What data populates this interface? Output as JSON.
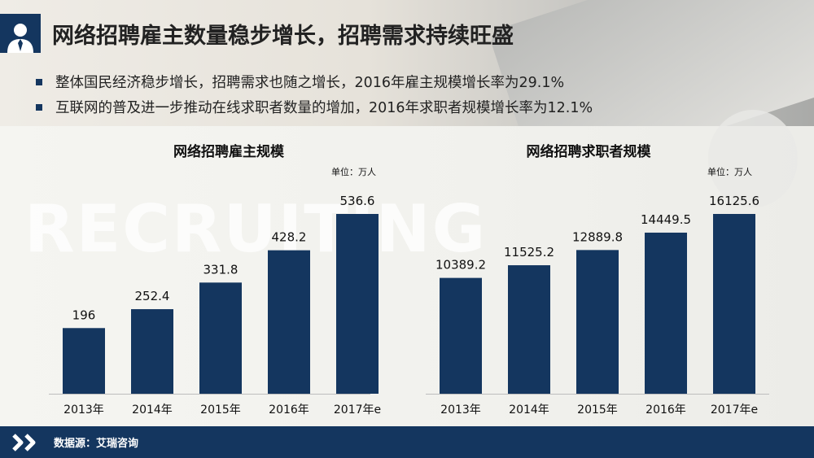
{
  "header": {
    "title": "网络招聘雇主数量稳步增长，招聘需求持续旺盛"
  },
  "bullets": [
    "整体国民经济稳步增长，招聘需求也随之增长，2016年雇主规模增长率为29.1%",
    "互联网的普及进一步推动在线求职者数量的增加，2016年求职者规模增长率为12.1%"
  ],
  "watermark": "RECRUITING",
  "footer": {
    "source": "数据源：艾瑞咨询"
  },
  "colors": {
    "bar": "#14365f",
    "title_bg": "#14365f",
    "footer_bg": "#14365f"
  },
  "icons": {
    "title_icon": "user-avatar-icon",
    "footer_icon": "double-chevron-right-icon"
  },
  "chart_data": [
    {
      "type": "bar",
      "title": "网络招聘雇主规模",
      "unit_label": "单位：万人",
      "categories": [
        "2013年",
        "2014年",
        "2015年",
        "2016年",
        "2017年e"
      ],
      "values": [
        196,
        252.4,
        331.8,
        428.2,
        536.6
      ],
      "value_labels": [
        "196",
        "252.4",
        "331.8",
        "428.2",
        "536.6"
      ],
      "ylim": [
        0,
        600
      ],
      "grid": false
    },
    {
      "type": "bar",
      "title": "网络招聘求职者规模",
      "unit_label": "单位：万人",
      "categories": [
        "2013年",
        "2014年",
        "2015年",
        "2016年",
        "2017年e"
      ],
      "values": [
        10389.2,
        11525.2,
        12889.8,
        14449.5,
        16125.6
      ],
      "value_labels": [
        "10389.2",
        "11525.2",
        "12889.8",
        "14449.5",
        "16125.6"
      ],
      "ylim": [
        0,
        18000
      ],
      "grid": false
    }
  ]
}
